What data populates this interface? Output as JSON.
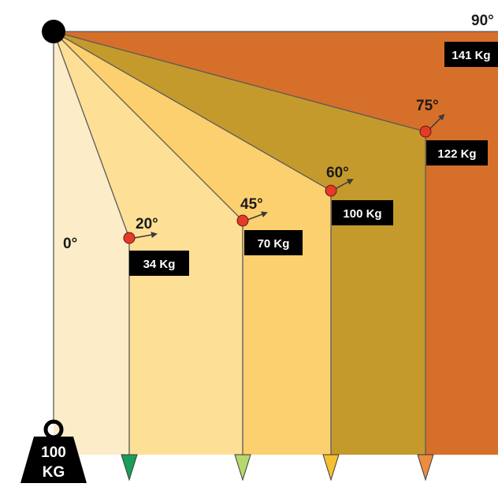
{
  "diagram": {
    "weight": {
      "line1": "100",
      "line2": "KG"
    },
    "angles": [
      {
        "angle_label": "0°",
        "force_label": ""
      },
      {
        "angle_label": "20°",
        "force_label": "34 Kg"
      },
      {
        "angle_label": "45°",
        "force_label": "70 Kg"
      },
      {
        "angle_label": "60°",
        "force_label": "100 Kg"
      },
      {
        "angle_label": "75°",
        "force_label": "122 Kg"
      },
      {
        "angle_label": "90°",
        "force_label": "141 Kg"
      }
    ],
    "colors": {
      "band_0": "#fcecc8",
      "band_20": "#fddf96",
      "band_45": "#fcd06e",
      "band_60": "#c59a2c",
      "band_75": "#d66f2a",
      "pivot": "#000000",
      "joint": "#e53a2a",
      "label_box": "#000000",
      "anchor_20": "#1a9e5a",
      "anchor_45": "#b7d86a",
      "anchor_60": "#f6c030",
      "anchor_75": "#ee8c40"
    }
  }
}
